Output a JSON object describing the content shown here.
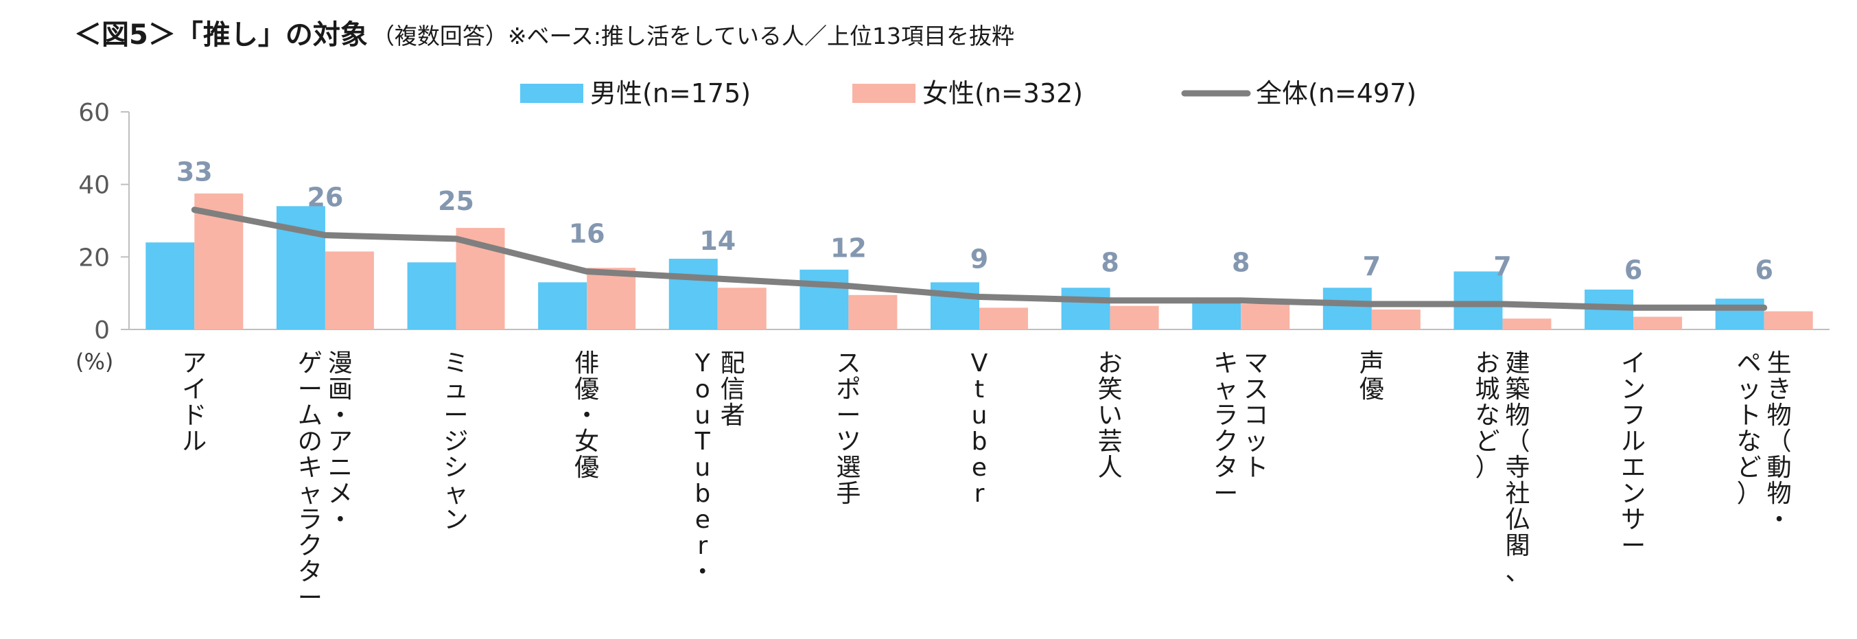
{
  "chart_data": {
    "type": "bar",
    "title": "＜図5＞「推し」の対象",
    "subtitle": "（複数回答）※ベース:推し活をしている人／上位13項目を抜粋",
    "ylabel": "(%)",
    "ylim": [
      0,
      60
    ],
    "yticks": [
      "0",
      "20",
      "40",
      "60"
    ],
    "grid": false,
    "legend_position": "top",
    "categories": [
      "アイドル",
      "漫画・アニメ・ゲームのキャラクター",
      "ミュージシャン",
      "俳優・女優",
      "配信者YouTuber・",
      "スポーツ選手",
      "Vtuber",
      "お笑い芸人",
      "マスコットキャラクター",
      "声優",
      "建築物（寺社仏閣、お城など）",
      "インフルエンサー",
      "生き物（動物・ペットなど）"
    ],
    "category_label_columns": [
      [
        "アイドル"
      ],
      [
        "漫画・アニメ・",
        "ゲームのキャラクター"
      ],
      [
        "ミュージシャン"
      ],
      [
        "俳優・女優"
      ],
      [
        "配信者",
        "YouTuber・"
      ],
      [
        "スポーツ選手"
      ],
      [
        "Vtuber"
      ],
      [
        "お笑い芸人"
      ],
      [
        "マスコット",
        "キャラクター"
      ],
      [
        "声優"
      ],
      [
        "建築物（寺社仏閣、",
        "お城など）"
      ],
      [
        "インフルエンサー"
      ],
      [
        "生き物（動物・",
        "ペットなど）"
      ]
    ],
    "series": [
      {
        "name": "男性(n=175)",
        "kind": "bar",
        "color": "#5BC8F5",
        "values": [
          24,
          34,
          18.5,
          13,
          19.5,
          16.5,
          13,
          11.5,
          8,
          11.5,
          16,
          11,
          8.5
        ]
      },
      {
        "name": "女性(n=332)",
        "kind": "bar",
        "color": "#F9B4A5",
        "values": [
          37.5,
          21.5,
          28,
          17,
          11.5,
          9.5,
          6,
          6.5,
          7,
          5.5,
          3,
          3.5,
          5
        ]
      },
      {
        "name": "全体(n=497)",
        "kind": "line",
        "color": "#7F7F7F",
        "values": [
          33,
          26,
          25,
          16,
          14,
          12,
          9,
          8,
          8,
          7,
          7,
          6,
          6
        ],
        "labels": [
          "33",
          "26",
          "25",
          "16",
          "14",
          "12",
          "9",
          "8",
          "8",
          "7",
          "7",
          "6",
          "6"
        ],
        "label_color": "#8497B0"
      }
    ]
  }
}
